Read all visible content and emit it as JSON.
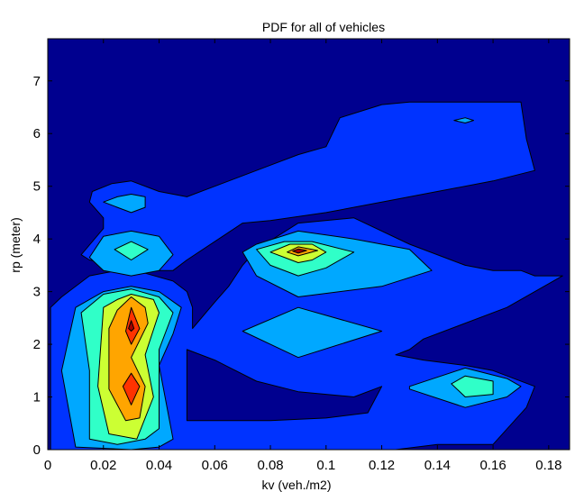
{
  "chart_data": {
    "type": "contour",
    "title": "PDF for all of vehicles",
    "xlabel": "kv (veh./m2)",
    "ylabel": "rp (meter)",
    "xlim": [
      0,
      0.1875
    ],
    "ylim": [
      0,
      7.8
    ],
    "x_ticks": [
      "0",
      "0.02",
      "0.04",
      "0.06",
      "0.08",
      "0.1",
      "0.12",
      "0.14",
      "0.16",
      "0.18"
    ],
    "x_tick_values": [
      0,
      0.02,
      0.04,
      0.06,
      0.08,
      0.1,
      0.12,
      0.14,
      0.16,
      0.18
    ],
    "y_ticks": [
      "0",
      "1",
      "2",
      "3",
      "4",
      "5",
      "6",
      "7"
    ],
    "y_tick_values": [
      0,
      1,
      2,
      3,
      4,
      5,
      6,
      7
    ],
    "background_color": "#00008F",
    "grid": false,
    "legend": false,
    "regions": [
      {
        "level": 1,
        "color": "#0033FF",
        "points": [
          [
            0.001,
            0
          ],
          [
            0.001,
            2.7
          ],
          [
            0.005,
            2.9
          ],
          [
            0.015,
            3.3
          ],
          [
            0.025,
            3.4
          ],
          [
            0.035,
            3.35
          ],
          [
            0.045,
            3.2
          ],
          [
            0.05,
            3.0
          ],
          [
            0.052,
            2.7
          ],
          [
            0.052,
            2.3
          ],
          [
            0.06,
            2.8
          ],
          [
            0.065,
            3.1
          ],
          [
            0.07,
            3.5
          ],
          [
            0.075,
            3.8
          ],
          [
            0.09,
            4.3
          ],
          [
            0.11,
            4.4
          ],
          [
            0.13,
            3.9
          ],
          [
            0.15,
            3.5
          ],
          [
            0.16,
            3.4
          ],
          [
            0.17,
            3.4
          ],
          [
            0.175,
            3.3
          ],
          [
            0.185,
            3.3
          ],
          [
            0.165,
            2.7
          ],
          [
            0.135,
            2.1
          ],
          [
            0.13,
            1.9
          ],
          [
            0.125,
            1.8
          ],
          [
            0.135,
            1.7
          ],
          [
            0.15,
            1.6
          ],
          [
            0.16,
            1.5
          ],
          [
            0.175,
            1.2
          ],
          [
            0.172,
            0.8
          ],
          [
            0.16,
            0.1
          ],
          [
            0.14,
            0.1
          ],
          [
            0.125,
            0
          ],
          [
            0.06,
            0
          ]
        ]
      },
      {
        "level": 1,
        "color": "#0033FF",
        "points": [
          [
            0.015,
            4.7
          ],
          [
            0.016,
            4.9
          ],
          [
            0.023,
            5.05
          ],
          [
            0.03,
            5.1
          ],
          [
            0.04,
            4.9
          ],
          [
            0.05,
            4.8
          ],
          [
            0.06,
            5.0
          ],
          [
            0.08,
            5.4
          ],
          [
            0.09,
            5.6
          ],
          [
            0.1,
            5.75
          ],
          [
            0.105,
            6.3
          ],
          [
            0.12,
            6.55
          ],
          [
            0.13,
            6.6
          ],
          [
            0.15,
            6.6
          ],
          [
            0.17,
            6.6
          ],
          [
            0.172,
            5.9
          ],
          [
            0.175,
            5.3
          ],
          [
            0.16,
            5.1
          ],
          [
            0.14,
            4.9
          ],
          [
            0.12,
            4.7
          ],
          [
            0.1,
            4.5
          ],
          [
            0.08,
            4.35
          ],
          [
            0.07,
            4.3
          ],
          [
            0.05,
            3.6
          ],
          [
            0.045,
            3.4
          ],
          [
            0.035,
            3.4
          ],
          [
            0.025,
            3.5
          ],
          [
            0.015,
            3.6
          ],
          [
            0.012,
            3.7
          ],
          [
            0.02,
            4.2
          ],
          [
            0.02,
            4.4
          ]
        ]
      },
      {
        "level": 0,
        "color": "#00008F",
        "points": [
          [
            0.05,
            1.9
          ],
          [
            0.06,
            1.7
          ],
          [
            0.075,
            1.3
          ],
          [
            0.09,
            1.1
          ],
          [
            0.11,
            1.0
          ],
          [
            0.12,
            1.2
          ],
          [
            0.115,
            0.7
          ],
          [
            0.1,
            0.6
          ],
          [
            0.08,
            0.55
          ],
          [
            0.06,
            0.55
          ],
          [
            0.05,
            0.55
          ]
        ]
      },
      {
        "level": 2,
        "color": "#00A8FF",
        "points": [
          [
            0.01,
            0.05
          ],
          [
            0.005,
            1.5
          ],
          [
            0.01,
            2.7
          ],
          [
            0.02,
            3.0
          ],
          [
            0.03,
            3.1
          ],
          [
            0.04,
            3.0
          ],
          [
            0.048,
            2.7
          ],
          [
            0.045,
            2.2
          ],
          [
            0.04,
            1.6
          ],
          [
            0.045,
            0.2
          ],
          [
            0.04,
            0.05
          ],
          [
            0.03,
            0
          ]
        ]
      },
      {
        "level": 2,
        "color": "#00A8FF",
        "points": [
          [
            0.02,
            4.7
          ],
          [
            0.025,
            4.8
          ],
          [
            0.03,
            4.85
          ],
          [
            0.035,
            4.8
          ],
          [
            0.035,
            4.6
          ],
          [
            0.03,
            4.5
          ],
          [
            0.025,
            4.6
          ]
        ]
      },
      {
        "level": 2,
        "color": "#00A8FF",
        "points": [
          [
            0.015,
            3.65
          ],
          [
            0.02,
            4.05
          ],
          [
            0.03,
            4.15
          ],
          [
            0.04,
            4.05
          ],
          [
            0.045,
            3.7
          ],
          [
            0.04,
            3.4
          ],
          [
            0.03,
            3.3
          ],
          [
            0.02,
            3.4
          ]
        ]
      },
      {
        "level": 2,
        "color": "#00A8FF",
        "points": [
          [
            0.07,
            3.75
          ],
          [
            0.075,
            3.9
          ],
          [
            0.09,
            4.15
          ],
          [
            0.11,
            4.0
          ],
          [
            0.13,
            3.8
          ],
          [
            0.138,
            3.4
          ],
          [
            0.12,
            3.1
          ],
          [
            0.09,
            2.9
          ],
          [
            0.075,
            3.3
          ]
        ]
      },
      {
        "level": 2,
        "color": "#00A8FF",
        "points": [
          [
            0.07,
            2.25
          ],
          [
            0.09,
            2.7
          ],
          [
            0.12,
            2.25
          ],
          [
            0.09,
            1.75
          ]
        ]
      },
      {
        "level": 2,
        "color": "#00A8FF",
        "points": [
          [
            0.13,
            1.2
          ],
          [
            0.15,
            1.55
          ],
          [
            0.165,
            1.35
          ],
          [
            0.17,
            1.2
          ],
          [
            0.165,
            1.0
          ],
          [
            0.15,
            0.8
          ],
          [
            0.13,
            1.15
          ]
        ]
      },
      {
        "level": 3,
        "color": "#30FFC8",
        "points": [
          [
            0.015,
            0.2
          ],
          [
            0.015,
            1.5
          ],
          [
            0.012,
            2.6
          ],
          [
            0.02,
            2.95
          ],
          [
            0.03,
            3.05
          ],
          [
            0.04,
            2.9
          ],
          [
            0.045,
            2.6
          ],
          [
            0.04,
            1.9
          ],
          [
            0.04,
            0.4
          ],
          [
            0.035,
            0.2
          ],
          [
            0.025,
            0.1
          ]
        ]
      },
      {
        "level": 3,
        "color": "#30FFC8",
        "points": [
          [
            0.024,
            3.8
          ],
          [
            0.03,
            3.95
          ],
          [
            0.036,
            3.8
          ],
          [
            0.03,
            3.6
          ]
        ]
      },
      {
        "level": 3,
        "color": "#30FFC8",
        "points": [
          [
            0.075,
            3.8
          ],
          [
            0.085,
            3.95
          ],
          [
            0.095,
            3.95
          ],
          [
            0.11,
            3.75
          ],
          [
            0.1,
            3.45
          ],
          [
            0.09,
            3.3
          ],
          [
            0.08,
            3.5
          ]
        ]
      },
      {
        "level": 3,
        "color": "#30FFC8",
        "points": [
          [
            0.145,
            1.25
          ],
          [
            0.15,
            1.4
          ],
          [
            0.16,
            1.3
          ],
          [
            0.16,
            1.05
          ],
          [
            0.15,
            1.0
          ]
        ]
      },
      {
        "level": 4,
        "color": "#CCFF33",
        "points": [
          [
            0.022,
            0.3
          ],
          [
            0.018,
            1.2
          ],
          [
            0.02,
            2.7
          ],
          [
            0.025,
            2.85
          ],
          [
            0.03,
            2.95
          ],
          [
            0.038,
            2.85
          ],
          [
            0.04,
            2.6
          ],
          [
            0.035,
            1.8
          ],
          [
            0.038,
            1.0
          ],
          [
            0.032,
            0.2
          ]
        ]
      },
      {
        "level": 4,
        "color": "#CCFF33",
        "points": [
          [
            0.08,
            3.75
          ],
          [
            0.087,
            3.9
          ],
          [
            0.095,
            3.9
          ],
          [
            0.1,
            3.75
          ],
          [
            0.095,
            3.6
          ],
          [
            0.09,
            3.55
          ],
          [
            0.085,
            3.65
          ]
        ]
      },
      {
        "level": 5,
        "color": "#FFA500",
        "points": [
          [
            0.028,
            0.55
          ],
          [
            0.022,
            1.15
          ],
          [
            0.022,
            2.3
          ],
          [
            0.025,
            2.65
          ],
          [
            0.03,
            2.9
          ],
          [
            0.035,
            2.7
          ],
          [
            0.036,
            2.4
          ],
          [
            0.03,
            1.75
          ],
          [
            0.035,
            1.2
          ],
          [
            0.033,
            0.6
          ]
        ]
      },
      {
        "level": 5,
        "color": "#FFA500",
        "points": [
          [
            0.086,
            3.75
          ],
          [
            0.09,
            3.85
          ],
          [
            0.097,
            3.78
          ],
          [
            0.09,
            3.68
          ]
        ]
      },
      {
        "level": 6,
        "color": "#FF3300",
        "points": [
          [
            0.03,
            0.85
          ],
          [
            0.027,
            1.2
          ],
          [
            0.03,
            1.45
          ],
          [
            0.033,
            1.2
          ]
        ]
      },
      {
        "level": 6,
        "color": "#FF3300",
        "points": [
          [
            0.028,
            2.25
          ],
          [
            0.03,
            2.7
          ],
          [
            0.033,
            2.3
          ],
          [
            0.03,
            2.0
          ]
        ]
      },
      {
        "level": 7,
        "color": "#A00000",
        "points": [
          [
            0.03,
            2.25
          ],
          [
            0.029,
            2.3
          ],
          [
            0.03,
            2.45
          ],
          [
            0.031,
            2.3
          ]
        ]
      },
      {
        "level": 7,
        "color": "#A00000",
        "points": [
          [
            0.088,
            3.77
          ],
          [
            0.09,
            3.81
          ],
          [
            0.093,
            3.78
          ],
          [
            0.09,
            3.73
          ]
        ]
      },
      {
        "level": 2,
        "color": "#00A8FF",
        "points": [
          [
            0.146,
            6.25
          ],
          [
            0.15,
            6.3
          ],
          [
            0.153,
            6.25
          ],
          [
            0.15,
            6.2
          ]
        ]
      }
    ]
  }
}
